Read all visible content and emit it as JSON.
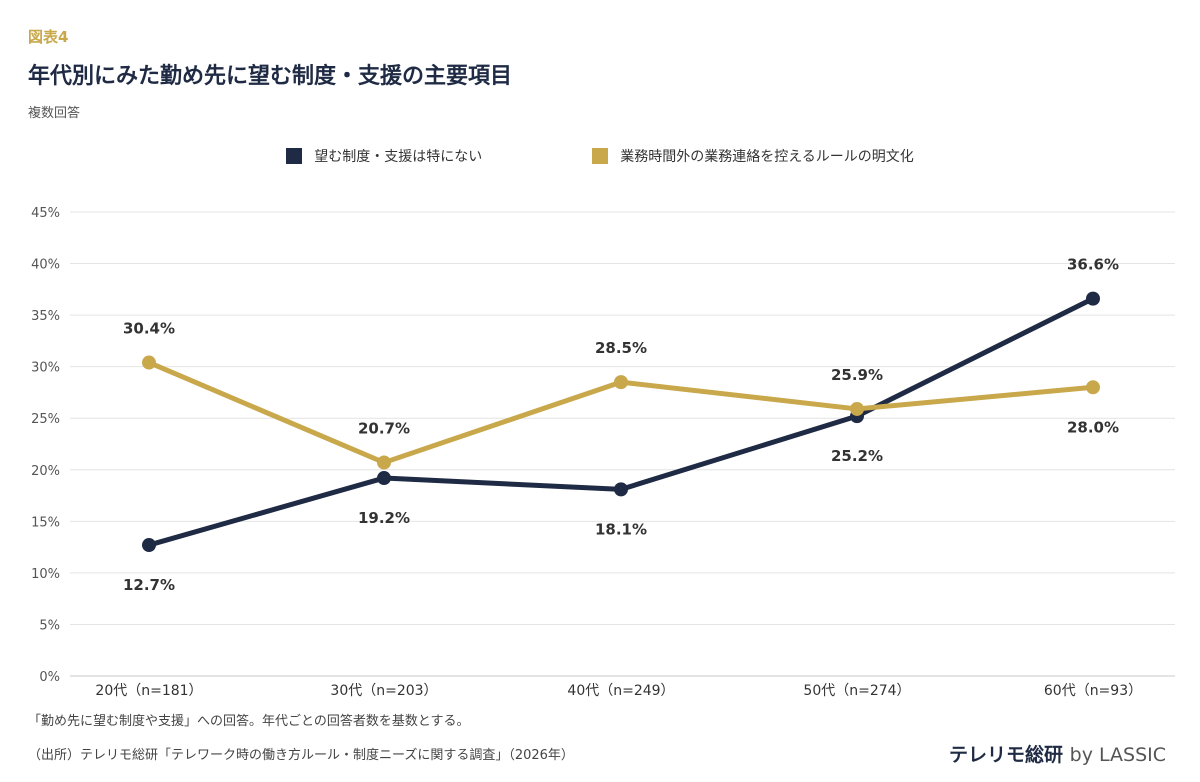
{
  "figure_label": "図表4",
  "title": "年代別にみた勤め先に望む制度・支援の主要項目",
  "subtitle": "複数回答",
  "note": "「勤め先に望む制度や支援」への回答。年代ごとの回答者数を基数とする。",
  "source": "（出所）テレリモ総研「テレワーク時の働き方ルール・制度ニーズに関する調査」（2026年）",
  "brand": {
    "name": "テレリモ総研",
    "by": "by LASSIC"
  },
  "chart_data": {
    "type": "line",
    "categories": [
      "20代（n=181）",
      "30代（n=203）",
      "40代（n=249）",
      "50代（n=274）",
      "60代（n=93）"
    ],
    "series": [
      {
        "name": "望む制度・支援は特にない",
        "color": "#1f2a44",
        "values": [
          12.7,
          19.2,
          18.1,
          25.2,
          36.6
        ],
        "labels": [
          "12.7%",
          "19.2%",
          "18.1%",
          "25.2%",
          "36.6%"
        ],
        "label_position": [
          "below",
          "below",
          "below",
          "below",
          "above"
        ]
      },
      {
        "name": "業務時間外の業務連絡を控えるルールの明文化",
        "color": "#c8a84b",
        "values": [
          30.4,
          20.7,
          28.5,
          25.9,
          28.0
        ],
        "labels": [
          "30.4%",
          "20.7%",
          "28.5%",
          "25.9%",
          "28.0%"
        ],
        "label_position": [
          "above",
          "above",
          "above",
          "above",
          "below"
        ]
      }
    ],
    "ylim": [
      0,
      45
    ],
    "yticks": [
      0,
      5,
      10,
      15,
      20,
      25,
      30,
      35,
      40,
      45
    ],
    "ytick_labels": [
      "0%",
      "5%",
      "10%",
      "15%",
      "20%",
      "25%",
      "30%",
      "35%",
      "40%",
      "45%"
    ],
    "grid": true,
    "legend_position": "top-center"
  }
}
